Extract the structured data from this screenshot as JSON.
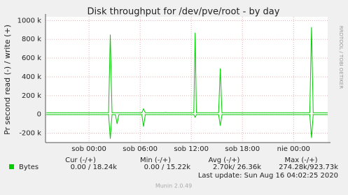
{
  "chart_data": {
    "type": "line",
    "title": "Disk throughput for /dev/pve/root - by day",
    "y_label": "Pr second read (-) / write (+)",
    "side_text": "RRDTOOL / TOBI OETIKER",
    "x": [
      -5,
      2.3,
      2.5,
      2.7,
      3.1,
      3.3,
      3.5,
      6.2,
      6.4,
      6.6,
      8.8,
      9.0,
      9.2,
      12.3,
      12.45,
      12.6,
      15.2,
      15.4,
      15.6,
      25.9,
      26.1,
      26.3,
      28
    ],
    "series": [
      {
        "name": "Bytes",
        "color": "#00cc00",
        "values": [
          18000,
          18000,
          850000,
          18000,
          18000,
          18000,
          18000,
          18000,
          60000,
          18000,
          18000,
          20000,
          18000,
          18000,
          870000,
          18000,
          18000,
          490000,
          18000,
          18000,
          930000,
          18000,
          18000
        ],
        "neg_values": [
          -2000,
          -2000,
          -260000,
          -2000,
          -2000,
          -100000,
          -2000,
          -2000,
          -130000,
          -2000,
          -2000,
          -2000,
          -2000,
          -2000,
          -30000,
          -2000,
          -2000,
          -120000,
          -2000,
          -2000,
          -250000,
          -2000,
          -2000
        ]
      }
    ],
    "xlim": [
      -5.1,
      28
    ],
    "xticks": [
      {
        "value": 0,
        "label": "sob 00:00"
      },
      {
        "value": 6,
        "label": "sob 06:00"
      },
      {
        "value": 12,
        "label": "sob 12:00"
      },
      {
        "value": 18,
        "label": "sob 18:00"
      },
      {
        "value": 24,
        "label": "nie 00:00"
      }
    ],
    "ylim": [
      -300000,
      1040000
    ],
    "yticks": [
      {
        "value": -200000,
        "label": "-200 k"
      },
      0,
      {
        "value": 200000,
        "label": "200 k"
      },
      {
        "value": 400000,
        "label": "400 k"
      },
      {
        "value": 600000,
        "label": "600 k"
      },
      {
        "value": 800000,
        "label": "800 k"
      },
      {
        "value": 1000000,
        "label": "1000 k"
      }
    ],
    "grid": true,
    "legend_table": {
      "headers": [
        "Cur (-/+)",
        "Min (-/+)",
        "Avg (-/+)",
        "Max (-/+)"
      ],
      "row": [
        "0.00 / 18.24k",
        "0.00 / 15.22k",
        "2.70k/ 26.36k",
        "274.28k/923.73k"
      ]
    },
    "last_update": "Last update: Sun Aug 16 04:02:25 2020",
    "footer": "Munin 2.0.49"
  }
}
